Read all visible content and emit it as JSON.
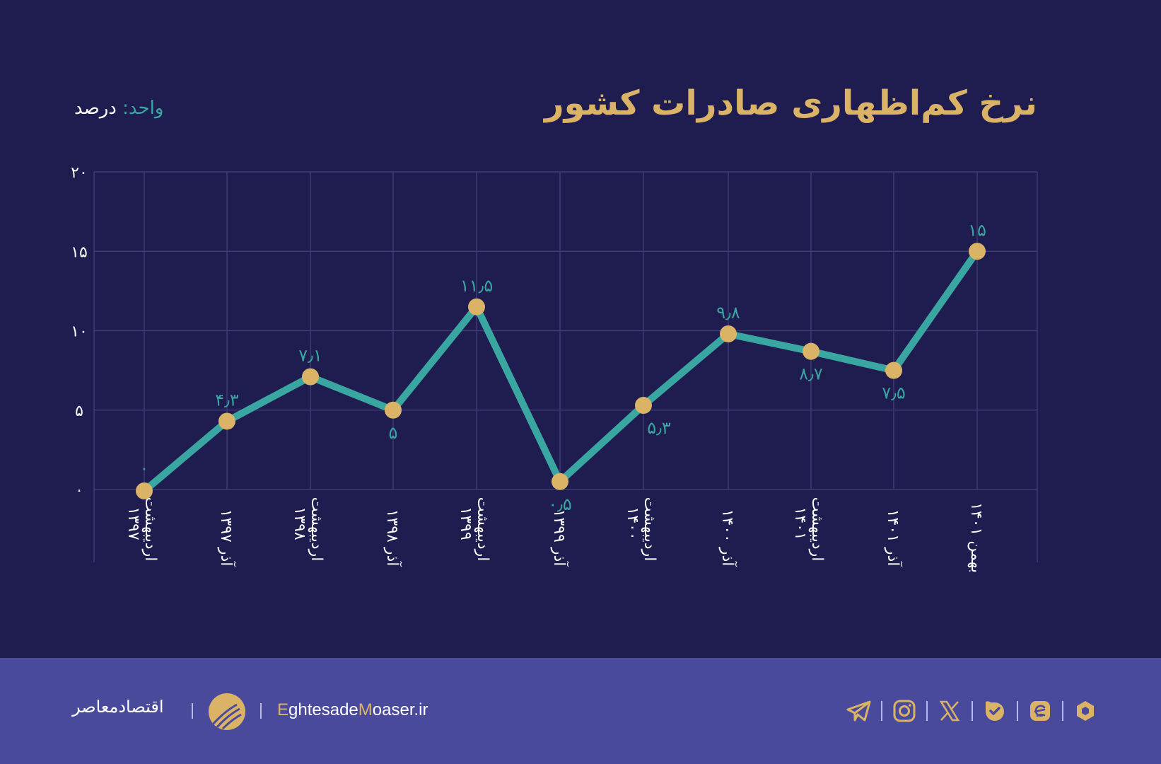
{
  "header": {
    "title": "نرخ کم‌اظهاری صادرات کشور",
    "unit_label": "واحد:",
    "unit_value": "درصد"
  },
  "colors": {
    "background": "#1f1d4f",
    "footer": "#4a4a9c",
    "line": "#3aa6a2",
    "marker": "#dab366",
    "title": "#dab366",
    "grid": "#3e3b75"
  },
  "chart_data": {
    "type": "line",
    "title": "نرخ کم‌اظهاری صادرات کشور",
    "xlabel": "",
    "ylabel": "درصد",
    "ylim": [
      0,
      20
    ],
    "yticks": [
      0,
      5,
      10,
      15,
      20
    ],
    "ytick_labels": [
      "۰",
      "۵",
      "۱۰",
      "۱۵",
      "۲۰"
    ],
    "grid": true,
    "legend": null,
    "categories": [
      "اردیبهشت ۱۳۹۷",
      "آذر ۱۳۹۷",
      "اردیبهشت ۱۳۹۸",
      "آذر ۱۳۹۸",
      "اردیبهشت ۱۳۹۹",
      "آذر ۱۳۹۹",
      "اردیبهشت ۱۴۰۰",
      "آذر ۱۴۰۰",
      "اردیبهشت ۱۴۰۱",
      "آذر ۱۴۰۱",
      "بهمن ۱۴۰۱"
    ],
    "series": [
      {
        "name": "نرخ کم‌اظهاری",
        "values": [
          0,
          4.3,
          7.1,
          5,
          11.5,
          0.5,
          5.3,
          9.8,
          8.7,
          7.5,
          15
        ],
        "labels": [
          "۰",
          "۴٫۳",
          "۷٫۱",
          "۵",
          "۱۱٫۵",
          "۰٫۵",
          "۵٫۳",
          "۹٫۸",
          "۸٫۷",
          "۷٫۵",
          "۱۵"
        ]
      }
    ]
  },
  "footer": {
    "brand_fa": "اقتصادمعاصر",
    "brand_en_part1": "E",
    "brand_en_part2": "ghtesade",
    "brand_en_part3": "M",
    "brand_en_part4": "oaser.ir",
    "social_icons": [
      "telegram-icon",
      "instagram-icon",
      "x-icon",
      "bale-icon",
      "eitaa-icon",
      "rubika-icon"
    ]
  }
}
